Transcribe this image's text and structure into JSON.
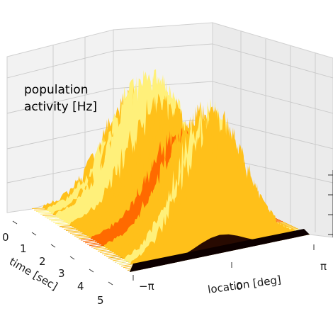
{
  "chart_data": {
    "type": "3d-surface",
    "title": "",
    "zlabel_lines": [
      "population",
      "activity [Hz]"
    ],
    "xlabel": "location [deg]",
    "ylabel": "time [sec]",
    "x_ticks": [
      "−π",
      "0",
      "π"
    ],
    "y_ticks": [
      "0",
      "1",
      "2",
      "3",
      "4",
      "5"
    ],
    "xlim": [
      "-π",
      "π"
    ],
    "ylim": [
      0,
      5
    ],
    "colormap": "hot",
    "colors": [
      "#000000",
      "#3a0000",
      "#8a0000",
      "#d21000",
      "#ff6a00",
      "#ffc01a",
      "#fff07a"
    ],
    "grid": true,
    "bump": {
      "center_deg": "0",
      "shape": "noisy bump centred on location 0 that persists from time 0 to 5 sec, with activity near zero at the edges"
    }
  }
}
